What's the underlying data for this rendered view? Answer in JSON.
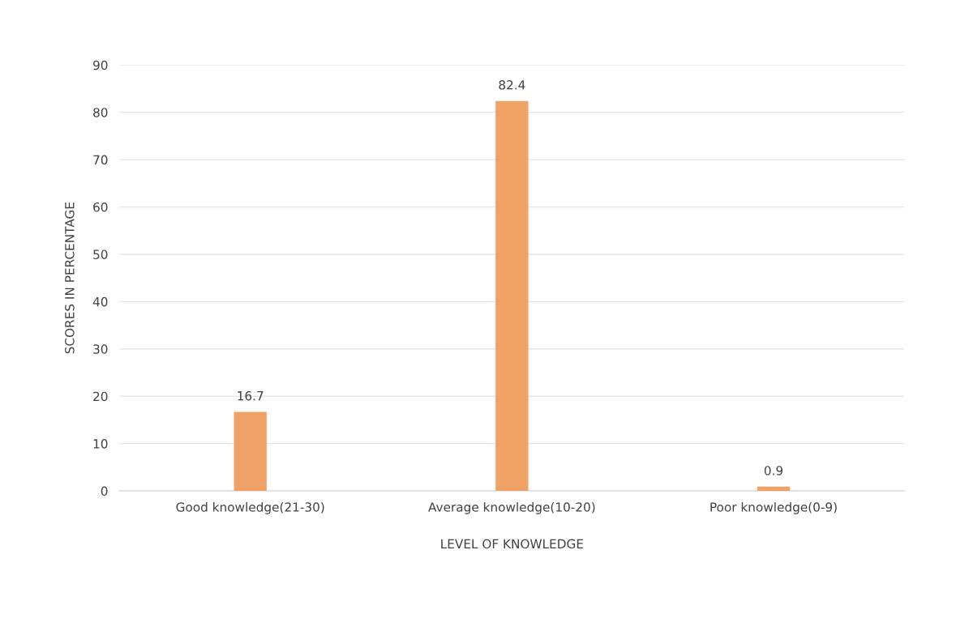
{
  "chart_data": {
    "type": "bar",
    "xlabel": "LEVEL OF KNOWLEDGE",
    "ylabel": "SCORES IN PERCENTAGE",
    "categories": [
      "Good knowledge(21-30)",
      "Average knowledge(10-20)",
      "Poor knowledge(0-9)"
    ],
    "values": [
      16.7,
      82.4,
      0.9
    ],
    "color": "#f0a266",
    "ylim": [
      0,
      90
    ],
    "yticks": [
      0,
      10,
      20,
      30,
      40,
      50,
      60,
      70,
      80,
      90
    ],
    "grid": "y",
    "data_labels": true
  }
}
